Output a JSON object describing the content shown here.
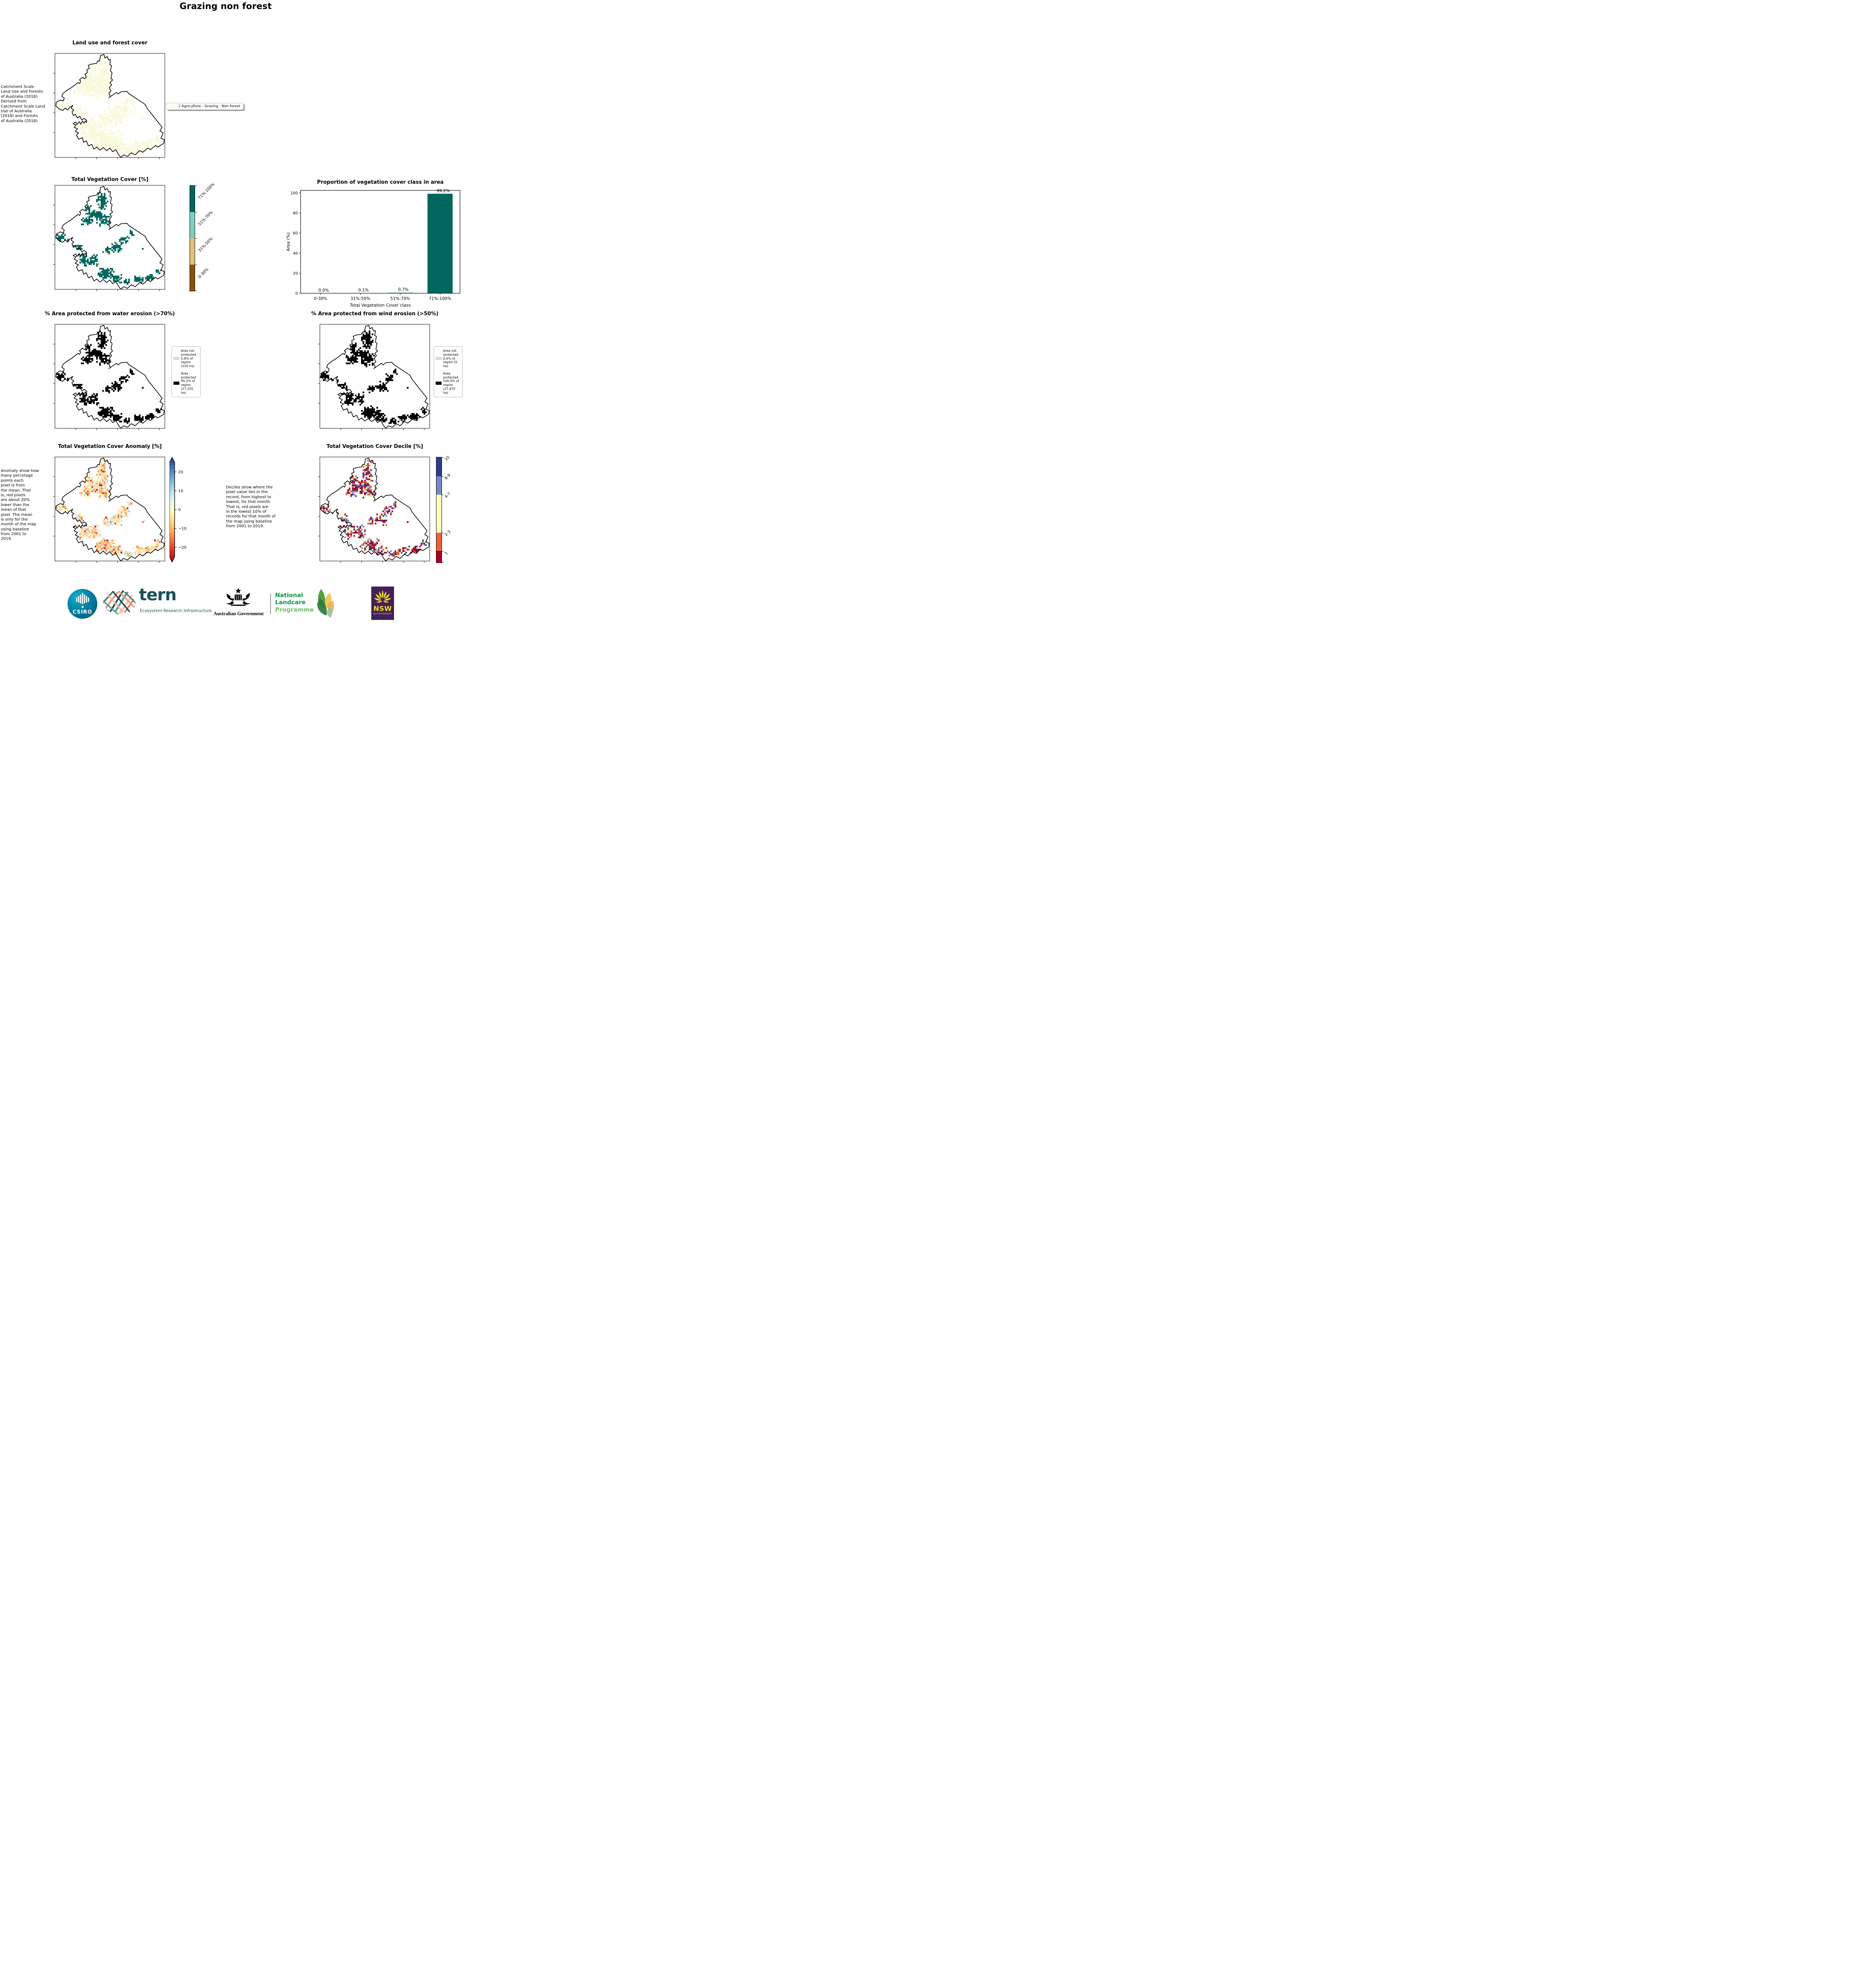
{
  "page": {
    "title": "Grazing non forest"
  },
  "panels": {
    "landuse": {
      "title": "Land use and forest cover",
      "side_text": " Catchment Scale\nLand Use and Forests\nof Australia (2018)\nDerived from\nCatchment Scale Land\nUse of Australia\n(2018) and Forests\nof Australia (2018)",
      "legend": {
        "label": "1 Agriculture - Grazing - Non forest",
        "swatch_color": "#fbfbdf"
      }
    },
    "vegcover": {
      "title": "Total Vegetation Cover [%]",
      "colorbar": [
        {
          "color": "#01665e",
          "label": "71%-100%",
          "frac": 0.25
        },
        {
          "color": "#80cdc1",
          "label": "51%-70%",
          "frac": 0.25
        },
        {
          "color": "#dfc27d",
          "label": "31%-50%",
          "frac": 0.25
        },
        {
          "color": "#8c510a",
          "label": "0-30%",
          "frac": 0.25
        }
      ]
    },
    "water": {
      "title": "% Area protected from water erosion (>70%)",
      "legend": [
        {
          "color": "#d9d9d9",
          "label": "Area not protected 0.8% of region (220 ha)"
        },
        {
          "color": "#000000",
          "label": "Area protected 99.2% of region (27,255 ha)"
        }
      ]
    },
    "wind": {
      "title": "% Area protected from wind erosion (>50%)",
      "legend": [
        {
          "color": "#d9d9d9",
          "label": "Area not protected 0.0% of region (0 ha)"
        },
        {
          "color": "#000000",
          "label": "Area protected 100.0% of region (27,475 ha)"
        }
      ]
    },
    "anomaly": {
      "title": "Total Vegetation Cover Anomaly [%]",
      "side_text": "Anomaly show how\nmany percetage\npoints each\npixel is from\nthe mean. That\nis, red pixels\nare about 20%\nlower than the\nmean of that\npixel. The mean\nis only for the\nmonth of the map\nusing baseline\nfrom 2001 to\n2019.",
      "colorbar": {
        "gradient": [
          "#313695",
          "#4575b4",
          "#74add1",
          "#abd9e9",
          "#e0f3f8",
          "#ffffbf",
          "#fee090",
          "#fdae61",
          "#f46d43",
          "#d73027",
          "#a50026"
        ],
        "ticks": [
          "20",
          "10",
          "0",
          "−10",
          "−20"
        ]
      }
    },
    "decile": {
      "title": "Total Vegetation Cover Decile [%]",
      "side_text": "Deciles show where the\npixel value lies in the\nrecord, from highest to\nlowest, for that month.\nThat is, red pixels are\nin the lowest 10% of\nrecords for that month of\nthe map using baseline\nfrom 2001 to 2019.",
      "colorbar": [
        {
          "color": "#2d3a8c",
          "label": "10",
          "frac": 0.18
        },
        {
          "color": "#7487c1",
          "label": "8-9",
          "frac": 0.175
        },
        {
          "color": "#ffffbf",
          "label": "4-7",
          "frac": 0.36
        },
        {
          "color": "#e8613c",
          "label": "2-3",
          "frac": 0.175
        },
        {
          "color": "#a50026",
          "label": "1",
          "frac": 0.115
        }
      ]
    }
  },
  "chart_data": {
    "type": "bar",
    "title": "Proportion of vegetation cover class in area",
    "categories": [
      "0-30%",
      "31%-50%",
      "51%-70%",
      "71%-100%"
    ],
    "values": [
      0.0,
      0.1,
      0.7,
      99.2
    ],
    "bar_labels": [
      "0.0%",
      "0.1%",
      "0.7%",
      "99.2%"
    ],
    "bar_colors": [
      "#80cdc1",
      "#80cdc1",
      "#80cdc1",
      "#01665e"
    ],
    "xlabel": "Total Vegetation Cover class",
    "ylabel": "Area (%)",
    "ylim": [
      0,
      102.5
    ],
    "yticks": [
      0,
      20,
      40,
      60,
      80,
      100
    ],
    "grid": false,
    "legend_position": "none"
  },
  "map": {
    "boundary": [
      [
        0.405,
        0.075
      ],
      [
        0.415,
        0.02
      ],
      [
        0.445,
        0.01
      ],
      [
        0.455,
        0.045
      ],
      [
        0.475,
        0.03
      ],
      [
        0.49,
        0.065
      ],
      [
        0.505,
        0.06
      ],
      [
        0.5,
        0.11
      ],
      [
        0.515,
        0.115
      ],
      [
        0.505,
        0.17
      ],
      [
        0.52,
        0.185
      ],
      [
        0.51,
        0.24
      ],
      [
        0.525,
        0.255
      ],
      [
        0.5,
        0.28
      ],
      [
        0.515,
        0.3
      ],
      [
        0.495,
        0.33
      ],
      [
        0.51,
        0.36
      ],
      [
        0.49,
        0.38
      ],
      [
        0.505,
        0.415
      ],
      [
        0.49,
        0.425
      ],
      [
        0.56,
        0.375
      ],
      [
        0.575,
        0.39
      ],
      [
        0.6,
        0.37
      ],
      [
        0.655,
        0.365
      ],
      [
        0.67,
        0.385
      ],
      [
        0.82,
        0.49
      ],
      [
        0.84,
        0.53
      ],
      [
        0.975,
        0.71
      ],
      [
        0.955,
        0.745
      ],
      [
        0.985,
        0.765
      ],
      [
        0.965,
        0.815
      ],
      [
        0.995,
        0.83
      ],
      [
        0.99,
        0.865
      ],
      [
        0.935,
        0.9
      ],
      [
        0.915,
        0.885
      ],
      [
        0.87,
        0.925
      ],
      [
        0.845,
        0.91
      ],
      [
        0.8,
        0.95
      ],
      [
        0.77,
        0.935
      ],
      [
        0.73,
        0.975
      ],
      [
        0.695,
        0.955
      ],
      [
        0.66,
        0.99
      ],
      [
        0.625,
        0.975
      ],
      [
        0.6,
        1.0
      ],
      [
        0.578,
        0.97
      ],
      [
        0.555,
        0.925
      ],
      [
        0.525,
        0.945
      ],
      [
        0.5,
        0.91
      ],
      [
        0.47,
        0.935
      ],
      [
        0.44,
        0.905
      ],
      [
        0.41,
        0.93
      ],
      [
        0.38,
        0.9
      ],
      [
        0.355,
        0.92
      ],
      [
        0.335,
        0.875
      ],
      [
        0.305,
        0.89
      ],
      [
        0.285,
        0.84
      ],
      [
        0.26,
        0.855
      ],
      [
        0.25,
        0.81
      ],
      [
        0.215,
        0.825
      ],
      [
        0.195,
        0.785
      ],
      [
        0.215,
        0.765
      ],
      [
        0.185,
        0.75
      ],
      [
        0.205,
        0.725
      ],
      [
        0.175,
        0.71
      ],
      [
        0.19,
        0.69
      ],
      [
        0.165,
        0.675
      ],
      [
        0.19,
        0.66
      ],
      [
        0.2,
        0.685
      ],
      [
        0.22,
        0.655
      ],
      [
        0.235,
        0.68
      ],
      [
        0.25,
        0.65
      ],
      [
        0.265,
        0.67
      ],
      [
        0.275,
        0.65
      ],
      [
        0.285,
        0.665
      ],
      [
        0.29,
        0.645
      ],
      [
        0.265,
        0.625
      ],
      [
        0.245,
        0.64
      ],
      [
        0.225,
        0.605
      ],
      [
        0.205,
        0.62
      ],
      [
        0.185,
        0.585
      ],
      [
        0.168,
        0.598
      ],
      [
        0.155,
        0.562
      ],
      [
        0.172,
        0.545
      ],
      [
        0.148,
        0.528
      ],
      [
        0.162,
        0.5
      ],
      [
        0.133,
        0.52
      ],
      [
        0.115,
        0.545
      ],
      [
        0.095,
        0.525
      ],
      [
        0.07,
        0.548
      ],
      [
        0.04,
        0.535
      ],
      [
        0.008,
        0.505
      ],
      [
        0.012,
        0.47
      ],
      [
        0.048,
        0.448
      ],
      [
        0.075,
        0.458
      ],
      [
        0.085,
        0.43
      ],
      [
        0.062,
        0.412
      ],
      [
        0.073,
        0.385
      ],
      [
        0.11,
        0.355
      ],
      [
        0.155,
        0.325
      ],
      [
        0.21,
        0.28
      ],
      [
        0.225,
        0.29
      ],
      [
        0.235,
        0.265
      ],
      [
        0.222,
        0.255
      ],
      [
        0.25,
        0.23
      ],
      [
        0.27,
        0.243
      ],
      [
        0.285,
        0.228
      ],
      [
        0.272,
        0.2
      ],
      [
        0.295,
        0.185
      ],
      [
        0.29,
        0.155
      ],
      [
        0.312,
        0.147
      ],
      [
        0.303,
        0.115
      ],
      [
        0.325,
        0.105
      ],
      [
        0.38,
        0.095
      ],
      [
        0.39,
        0.072
      ]
    ],
    "clusters": [
      [
        0.43,
        0.15,
        0.05,
        0.11,
        100
      ],
      [
        0.3,
        0.22,
        0.04,
        0.04,
        25
      ],
      [
        0.36,
        0.28,
        0.09,
        0.05,
        80
      ],
      [
        0.29,
        0.34,
        0.06,
        0.04,
        45
      ],
      [
        0.44,
        0.34,
        0.07,
        0.06,
        70
      ],
      [
        0.05,
        0.5,
        0.05,
        0.04,
        40
      ],
      [
        0.13,
        0.56,
        0.04,
        0.04,
        30
      ],
      [
        0.21,
        0.62,
        0.045,
        0.06,
        55
      ],
      [
        0.27,
        0.72,
        0.05,
        0.06,
        55
      ],
      [
        0.36,
        0.72,
        0.05,
        0.06,
        50
      ],
      [
        0.47,
        0.62,
        0.035,
        0.045,
        25
      ],
      [
        0.56,
        0.6,
        0.055,
        0.055,
        50
      ],
      [
        0.63,
        0.52,
        0.045,
        0.045,
        30
      ],
      [
        0.69,
        0.46,
        0.025,
        0.03,
        12
      ],
      [
        0.46,
        0.85,
        0.08,
        0.06,
        150
      ],
      [
        0.56,
        0.9,
        0.05,
        0.045,
        55
      ],
      [
        0.66,
        0.93,
        0.035,
        0.03,
        25
      ],
      [
        0.76,
        0.9,
        0.05,
        0.035,
        40
      ],
      [
        0.87,
        0.89,
        0.055,
        0.035,
        50
      ],
      [
        0.94,
        0.83,
        0.03,
        0.03,
        15
      ],
      [
        0.8,
        0.62,
        0.012,
        0.012,
        2
      ]
    ],
    "layers": {
      "landuse": {
        "seed": 42,
        "density": 2.0,
        "spread": 2.2,
        "palette": [
          [
            "#f9f9dd",
            1.0
          ]
        ]
      },
      "veg": {
        "seed": 42,
        "density": 0.85,
        "spread": 1.0,
        "palette": [
          [
            "#01665e",
            0.95
          ],
          [
            "#80cdc1",
            0.04
          ],
          [
            "#dfc27d",
            0.01
          ]
        ]
      },
      "water": {
        "seed": 42,
        "density": 0.85,
        "spread": 1.0,
        "palette": [
          [
            "#000000",
            1.0
          ]
        ]
      },
      "wind": {
        "seed": 42,
        "density": 0.95,
        "spread": 1.05,
        "palette": [
          [
            "#000000",
            1.0
          ]
        ]
      },
      "anomaly": {
        "seed": 7,
        "density": 1.2,
        "spread": 1.2,
        "palette": [
          [
            "#fee696",
            0.3
          ],
          [
            "#fdd9a6",
            0.2
          ],
          [
            "#f7a35c",
            0.16
          ],
          [
            "#cfe2ee",
            0.12
          ],
          [
            "#e86a42",
            0.08
          ],
          [
            "#fdf3c0",
            0.06
          ],
          [
            "#d73027",
            0.04
          ],
          [
            "#a6d2e3",
            0.02
          ],
          [
            "#a50026",
            0.02
          ]
        ]
      },
      "decile": {
        "seed": 7,
        "density": 1.25,
        "spread": 1.2,
        "palette": [
          [
            "#a50026",
            0.3
          ],
          [
            "#e45c3a",
            0.15
          ],
          [
            "#ffffbf",
            0.25
          ],
          [
            "#7487c1",
            0.15
          ],
          [
            "#2d3a8c",
            0.15
          ]
        ]
      }
    }
  },
  "footer": {
    "csiro": "CSIRO",
    "tern_name": "tern",
    "tern_tagline": "Ecosystem Research Infrastructure",
    "aus_gov": "Australian Government",
    "landcare_line1": "National",
    "landcare_line2": "Landcare",
    "landcare_line3": "Programme",
    "nsw_name": "NSW",
    "nsw_sub": "GOVERNMENT"
  }
}
